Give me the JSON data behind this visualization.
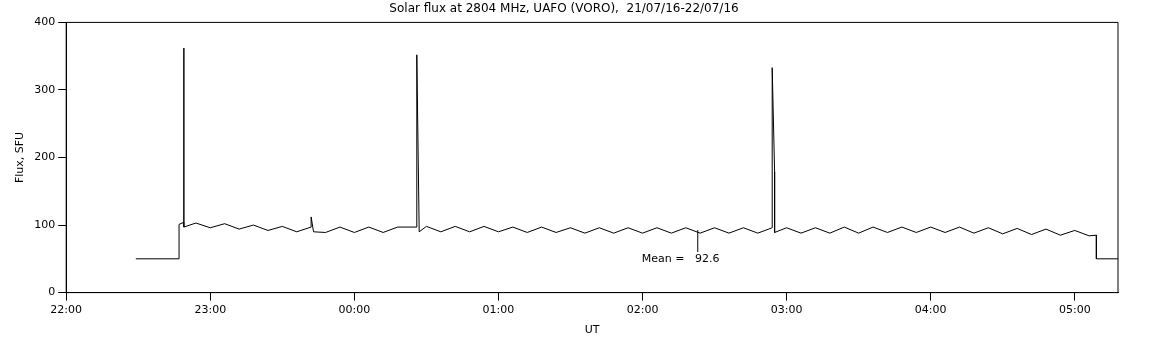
{
  "chart_data": {
    "type": "line",
    "title": "Solar flux at 2804 MHz, UAFO (VORO),  21/07/16-22/07/16",
    "xlabel": "UT",
    "ylabel": "Flux, SFU",
    "xlim": [
      "--07-21T22:00",
      "--07-22T05:18"
    ],
    "ylim": [
      0,
      400
    ],
    "xticks": [
      {
        "value": "--07-21T22:00",
        "label": "22:00"
      },
      {
        "value": "--07-21T23:00",
        "label": "23:00"
      },
      {
        "value": "--07-22T00:00",
        "label": "00:00"
      },
      {
        "value": "--07-22T01:00",
        "label": "01:00"
      },
      {
        "value": "--07-22T02:00",
        "label": "02:00"
      },
      {
        "value": "--07-22T03:00",
        "label": "03:00"
      },
      {
        "value": "--07-22T04:00",
        "label": "04:00"
      },
      {
        "value": "--07-22T05:00",
        "label": "05:00"
      }
    ],
    "yticks": [
      0,
      100,
      200,
      300,
      400
    ],
    "grid": false,
    "legend": false,
    "marker": "none",
    "line_style": "solid",
    "annotations": [
      {
        "text": "Mean =   92.6",
        "x": "--07-22T02:23",
        "y": 92.6
      }
    ],
    "series": [
      {
        "color": "#000000",
        "x": [
          "--07-21T22:29",
          "--07-21T22:47",
          "--07-21T22:47",
          "--07-21T22:49",
          "--07-21T22:49",
          "--07-21T22:49",
          "--07-21T22:54",
          "--07-21T23:00",
          "--07-21T23:06",
          "--07-21T23:12",
          "--07-21T23:18",
          "--07-21T23:24",
          "--07-21T23:30",
          "--07-21T23:36",
          "--07-21T23:42",
          "--07-21T23:42",
          "--07-21T23:43",
          "--07-21T23:48",
          "--07-21T23:54",
          "--07-22T00:00",
          "--07-22T00:06",
          "--07-22T00:12",
          "--07-22T00:18",
          "--07-22T00:26",
          "--07-22T00:26",
          "--07-22T00:27",
          "--07-22T00:30",
          "--07-22T00:36",
          "--07-22T00:42",
          "--07-22T00:48",
          "--07-22T00:54",
          "--07-22T01:00",
          "--07-22T01:06",
          "--07-22T01:12",
          "--07-22T01:18",
          "--07-22T01:24",
          "--07-22T01:30",
          "--07-22T01:36",
          "--07-22T01:42",
          "--07-22T01:48",
          "--07-22T01:54",
          "--07-22T02:00",
          "--07-22T02:06",
          "--07-22T02:12",
          "--07-22T02:18",
          "--07-22T02:24",
          "--07-22T02:30",
          "--07-22T02:36",
          "--07-22T02:42",
          "--07-22T02:48",
          "--07-22T02:54",
          "--07-22T02:54",
          "--07-22T02:55",
          "--07-22T02:55",
          "--07-22T03:00",
          "--07-22T03:06",
          "--07-22T03:12",
          "--07-22T03:18",
          "--07-22T03:24",
          "--07-22T03:30",
          "--07-22T03:36",
          "--07-22T03:42",
          "--07-22T03:48",
          "--07-22T03:54",
          "--07-22T04:00",
          "--07-22T04:06",
          "--07-22T04:12",
          "--07-22T04:18",
          "--07-22T04:24",
          "--07-22T04:30",
          "--07-22T04:36",
          "--07-22T04:42",
          "--07-22T04:48",
          "--07-22T04:54",
          "--07-22T05:00",
          "--07-22T05:06",
          "--07-22T05:09",
          "--07-22T05:09",
          "--07-22T05:18"
        ],
        "values": [
          50,
          50,
          101,
          104,
          362,
          97,
          103,
          96,
          102,
          94,
          100,
          92,
          98,
          90,
          97,
          112,
          90,
          89,
          97,
          89,
          97,
          89,
          97,
          97,
          352,
          90,
          98,
          90,
          98,
          90,
          98,
          90,
          97,
          89,
          97,
          89,
          96,
          88,
          96,
          88,
          96,
          88,
          96,
          88,
          96,
          88,
          96,
          88,
          96,
          88,
          96,
          333,
          179,
          89,
          96,
          88,
          96,
          88,
          97,
          88,
          97,
          89,
          97,
          89,
          97,
          89,
          97,
          88,
          96,
          87,
          95,
          86,
          94,
          85,
          92,
          84,
          85,
          50,
          50
        ]
      }
    ]
  }
}
